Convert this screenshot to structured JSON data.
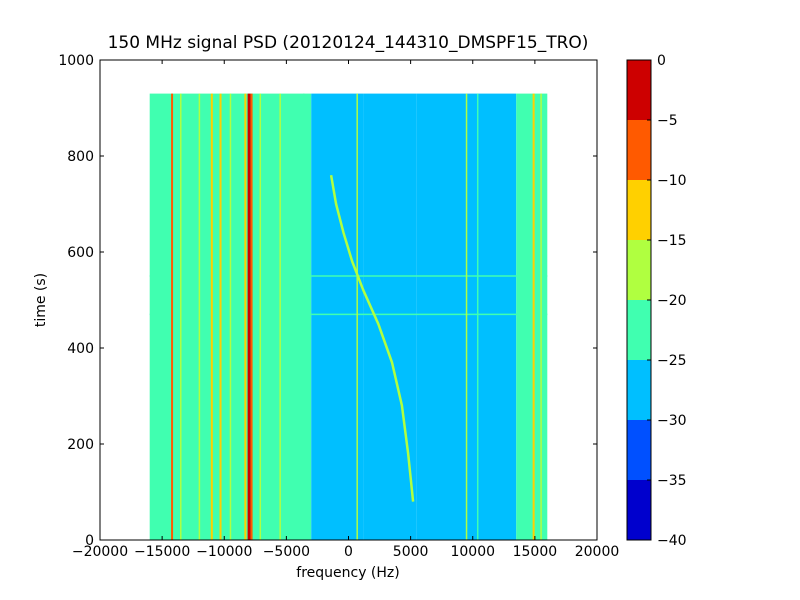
{
  "chart_data": {
    "type": "heatmap",
    "title": "150 MHz signal PSD (20120124_144310_DMSPF15_TRO)",
    "xlabel": "frequency (Hz)",
    "ylabel": "time (s)",
    "xlim": [
      -20000,
      20000
    ],
    "ylim": [
      0,
      1000
    ],
    "x_ticks": [
      -20000,
      -15000,
      -10000,
      -5000,
      0,
      5000,
      10000,
      15000,
      20000
    ],
    "x_tick_labels": [
      "−20000",
      "−15000",
      "−10000",
      "−5000",
      "0",
      "5000",
      "10000",
      "15000",
      "20000"
    ],
    "y_ticks": [
      0,
      200,
      400,
      600,
      800,
      1000
    ],
    "y_tick_labels": [
      "0",
      "200",
      "400",
      "600",
      "800",
      "1000"
    ],
    "data_extent": {
      "frequency": [
        -16000,
        16000
      ],
      "time": [
        0,
        930
      ]
    },
    "grid": false,
    "colorbar": {
      "range": [
        -40,
        0
      ],
      "ticks": [
        0,
        -5,
        -10,
        -15,
        -20,
        -25,
        -30,
        -35,
        -40
      ],
      "tick_labels": [
        "0",
        "−5",
        "−10",
        "−15",
        "−20",
        "−25",
        "−30",
        "−35",
        "−40"
      ],
      "levels": [
        {
          "from": -40,
          "to": -35,
          "color": "#0000cd"
        },
        {
          "from": -35,
          "to": -30,
          "color": "#0050ff"
        },
        {
          "from": -30,
          "to": -25,
          "color": "#00bfff"
        },
        {
          "from": -25,
          "to": -20,
          "color": "#40ffb0"
        },
        {
          "from": -20,
          "to": -15,
          "color": "#b0ff40"
        },
        {
          "from": -15,
          "to": -10,
          "color": "#ffd000"
        },
        {
          "from": -10,
          "to": -5,
          "color": "#ff5a00"
        },
        {
          "from": -5,
          "to": 0,
          "color": "#cd0000"
        }
      ]
    },
    "background_regions": [
      {
        "from": -16000,
        "to": -3000,
        "level": -22
      },
      {
        "from": -3000,
        "to": 1200,
        "level": -28
      },
      {
        "from": 1200,
        "to": 5500,
        "level": -27
      },
      {
        "from": 5500,
        "to": 13500,
        "level": -28
      },
      {
        "from": 13500,
        "to": 16000,
        "level": -22
      }
    ],
    "vertical_lines": [
      {
        "frequency": -14200,
        "level": -8
      },
      {
        "frequency": -13500,
        "level": -17
      },
      {
        "frequency": -12000,
        "level": -17
      },
      {
        "frequency": -11000,
        "level": -12
      },
      {
        "frequency": -10300,
        "level": -12
      },
      {
        "frequency": -9500,
        "level": -17
      },
      {
        "frequency": -8300,
        "level": -12
      },
      {
        "frequency": -8000,
        "level": -2
      },
      {
        "frequency": -7800,
        "level": -7
      },
      {
        "frequency": -7100,
        "level": -17
      },
      {
        "frequency": -5500,
        "level": -17
      },
      {
        "frequency": -3600,
        "level": -22
      },
      {
        "frequency": 700,
        "level": -17
      },
      {
        "frequency": 9500,
        "level": -17
      },
      {
        "frequency": 10400,
        "level": -22
      },
      {
        "frequency": 14900,
        "level": -12
      },
      {
        "frequency": 15500,
        "level": -17
      }
    ],
    "horizontal_lines": [
      {
        "time": 470,
        "level": -22
      },
      {
        "time": 550,
        "level": -22
      }
    ],
    "doppler_trace": {
      "level": -17,
      "points": [
        {
          "frequency": -1400,
          "time": 760
        },
        {
          "frequency": -1000,
          "time": 700
        },
        {
          "frequency": -400,
          "time": 640
        },
        {
          "frequency": 300,
          "time": 580
        },
        {
          "frequency": 1200,
          "time": 520
        },
        {
          "frequency": 2400,
          "time": 450
        },
        {
          "frequency": 3500,
          "time": 370
        },
        {
          "frequency": 4300,
          "time": 280
        },
        {
          "frequency": 4800,
          "time": 180
        },
        {
          "frequency": 5200,
          "time": 80
        }
      ]
    }
  }
}
